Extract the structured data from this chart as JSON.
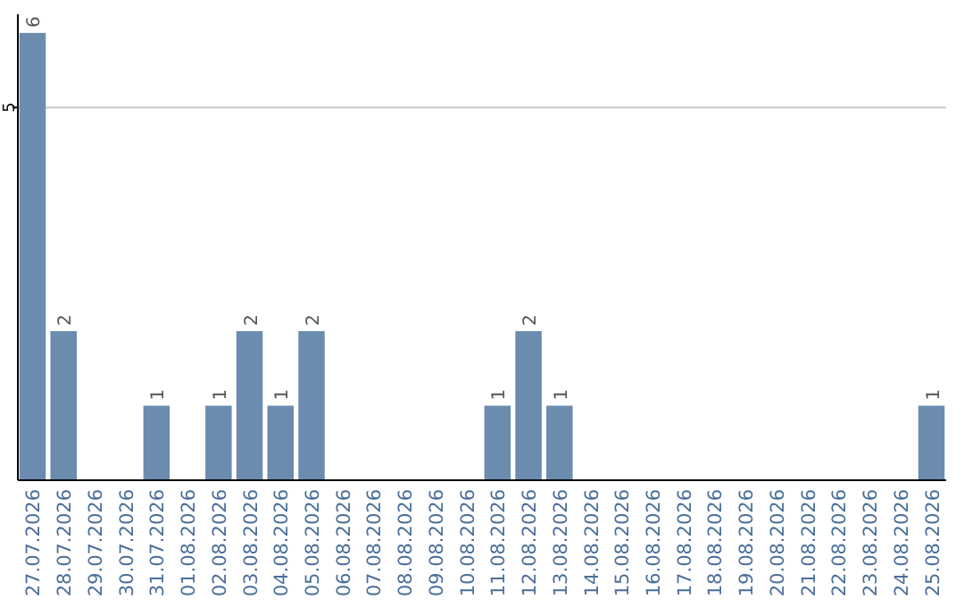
{
  "chart_data": {
    "type": "bar",
    "categories": [
      "27.07.2026",
      "28.07.2026",
      "29.07.2026",
      "30.07.2026",
      "31.07.2026",
      "01.08.2026",
      "02.08.2026",
      "03.08.2026",
      "04.08.2026",
      "05.08.2026",
      "06.08.2026",
      "07.08.2026",
      "08.08.2026",
      "09.08.2026",
      "10.08.2026",
      "11.08.2026",
      "12.08.2026",
      "13.08.2026",
      "14.08.2026",
      "15.08.2026",
      "16.08.2026",
      "17.08.2026",
      "18.08.2026",
      "19.08.2026",
      "20.08.2026",
      "21.08.2026",
      "22.08.2026",
      "23.08.2026",
      "24.08.2026",
      "25.08.2026"
    ],
    "values": [
      6,
      2,
      0,
      0,
      1,
      0,
      1,
      2,
      1,
      2,
      0,
      0,
      0,
      0,
      0,
      1,
      2,
      1,
      0,
      0,
      0,
      0,
      0,
      0,
      0,
      0,
      0,
      0,
      0,
      1
    ],
    "value_labels": [
      "6",
      "2",
      null,
      null,
      "1",
      null,
      "1",
      "2",
      "1",
      "2",
      null,
      null,
      null,
      null,
      null,
      "1",
      "2",
      "1",
      null,
      null,
      null,
      null,
      null,
      null,
      null,
      null,
      null,
      null,
      null,
      "1"
    ],
    "color": "#6b8cae",
    "ylim": [
      0,
      6.25
    ],
    "yticks": [
      5
    ],
    "grid": "y"
  }
}
